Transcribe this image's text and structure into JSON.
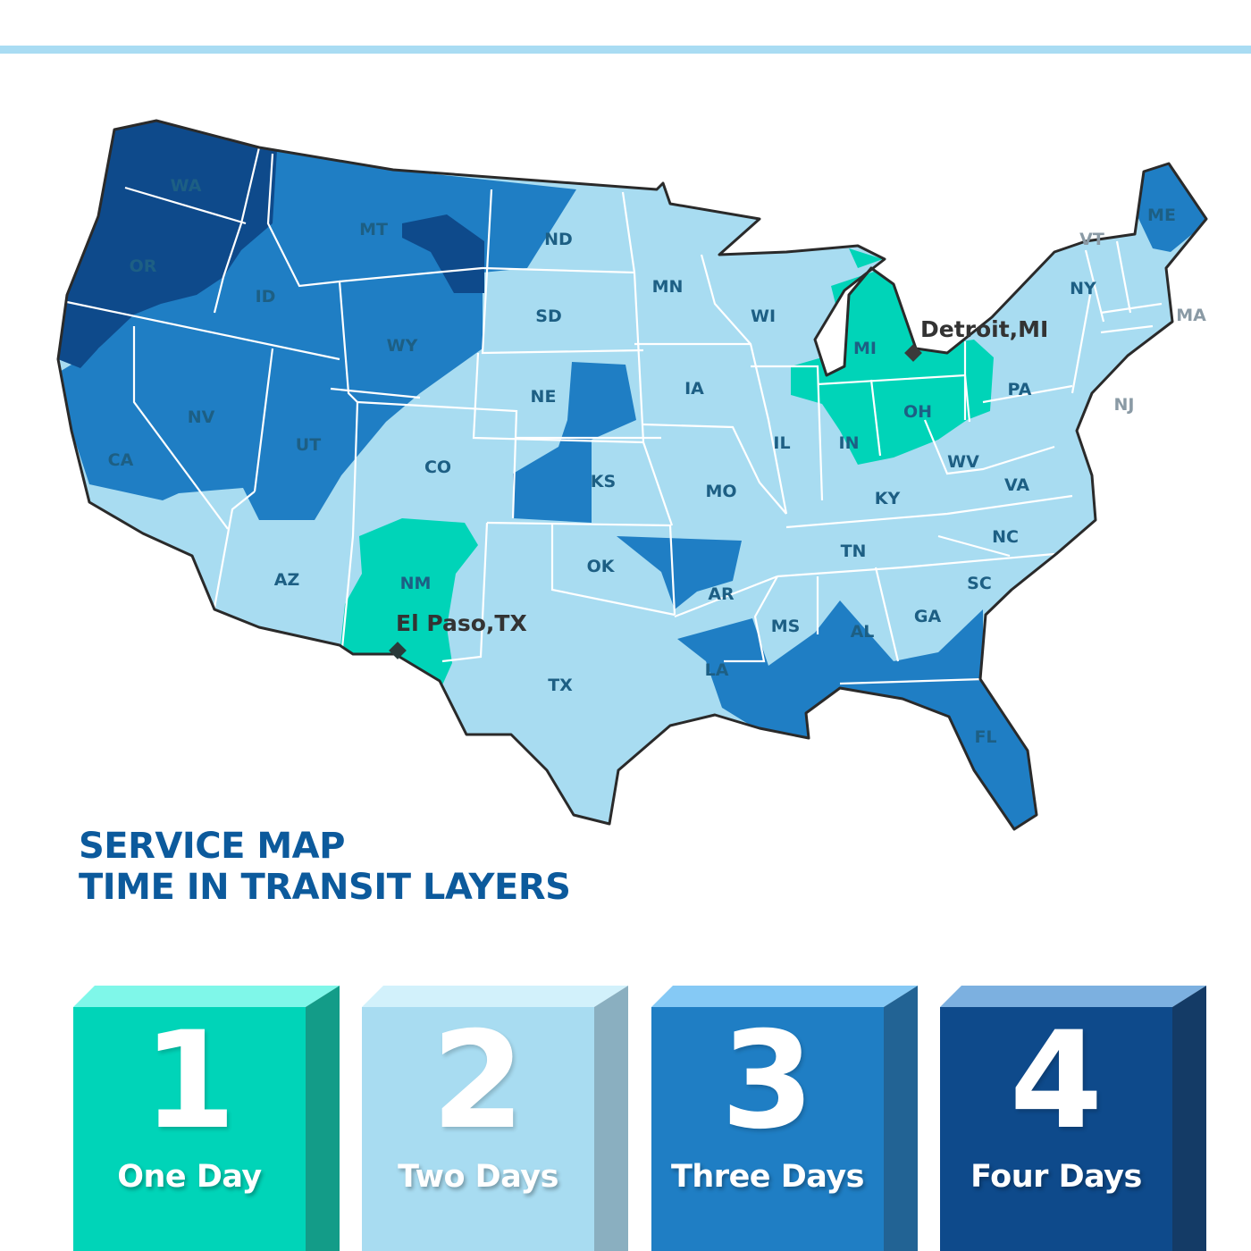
{
  "colors": {
    "one_day": "#00d4b8",
    "two_days": "#a8dcf1",
    "three_days": "#1f7ec4",
    "four_days": "#0e4a8b",
    "title": "#0c5a9c",
    "accent_bar": "#a9dcf3"
  },
  "map": {
    "states": [
      "WA",
      "OR",
      "CA",
      "ID",
      "NV",
      "MT",
      "WY",
      "UT",
      "AZ",
      "CO",
      "NM",
      "ND",
      "SD",
      "NE",
      "KS",
      "OK",
      "TX",
      "MN",
      "IA",
      "MO",
      "AR",
      "LA",
      "WI",
      "IL",
      "MI",
      "IN",
      "OH",
      "KY",
      "TN",
      "MS",
      "AL",
      "GA",
      "FL",
      "SC",
      "NC",
      "VA",
      "WV",
      "PA",
      "NY",
      "NJ",
      "VT",
      "ME",
      "MA"
    ],
    "cities": [
      {
        "name": "Detroit,MI",
        "icon": "diamond-marker-icon"
      },
      {
        "name": "El Paso,TX",
        "icon": "diamond-marker-icon"
      }
    ]
  },
  "title": {
    "line1": "SERVICE MAP",
    "line2": "TIME IN TRANSIT LAYERS"
  },
  "legend": [
    {
      "number": "1",
      "label": "One Day"
    },
    {
      "number": "2",
      "label": "Two Days"
    },
    {
      "number": "3",
      "label": "Three Days"
    },
    {
      "number": "4",
      "label": "Four Days"
    }
  ]
}
